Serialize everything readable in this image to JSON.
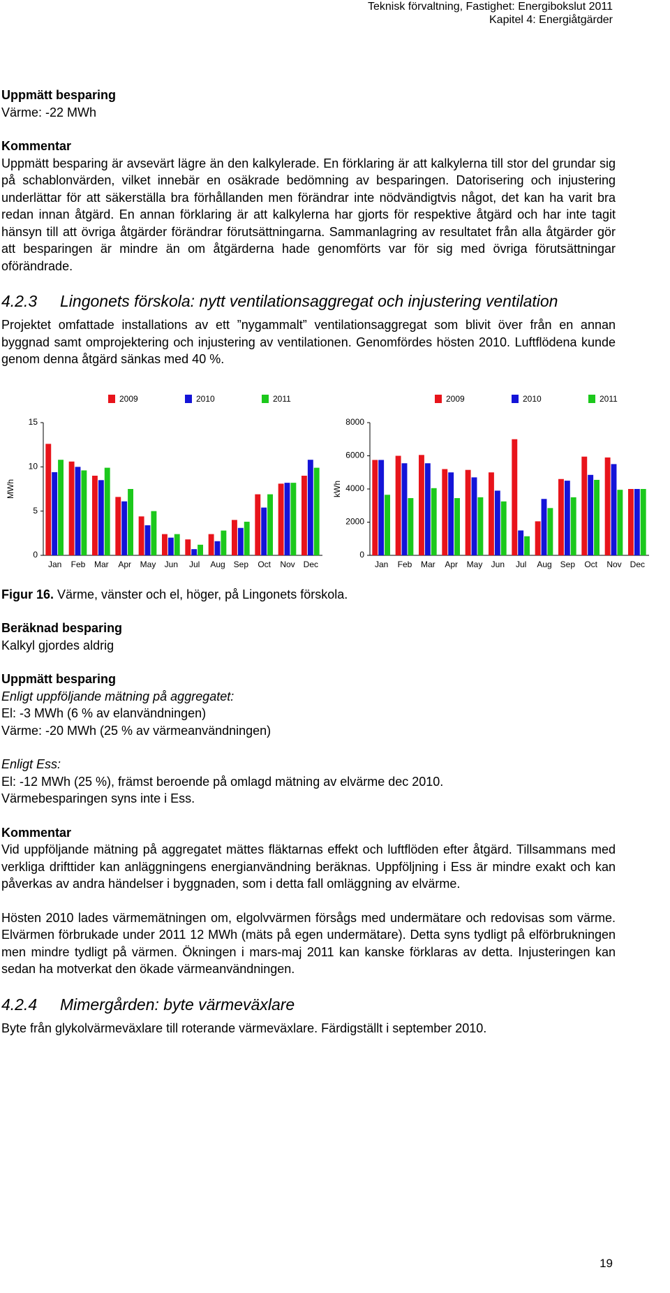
{
  "header": {
    "line1": "Teknisk förvaltning, Fastighet: Energibokslut 2011",
    "line2": "Kapitel 4: Energiåtgärder"
  },
  "s1": {
    "heading": "Uppmätt besparing",
    "text": "Värme: -22 MWh"
  },
  "s2": {
    "heading": "Kommentar",
    "text": "Uppmätt besparing är avsevärt lägre än den kalkylerade. En förklaring är att kalkylerna till stor del grundar sig på schablonvärden, vilket innebär en osäkrade bedömning av besparingen. Datorisering och injustering underlättar för att säkerställa bra förhållanden men förändrar inte nödvändigtvis något, det kan ha varit bra redan innan åtgärd. En annan förklaring är att kalkylerna har gjorts för respektive åtgärd och har inte tagit hänsyn till att övriga åtgärder förändrar förutsättningarna. Sammanlagring av resultatet från alla åtgärder gör att besparingen är mindre än om åtgärderna hade genomförts var för sig med övriga förutsättningar oförändrade."
  },
  "section_423": {
    "number": "4.2.3",
    "title": "Lingonets förskola: nytt ventilationsaggregat och injustering ventilation",
    "text": "Projektet omfattade installations av ett ”nygammalt” ventilationsaggregat som blivit över från en annan byggnad samt omprojektering och injustering av ventilationen. Genomfördes hösten 2010. Luftflödena kunde genom denna åtgärd sänkas med 40 %."
  },
  "chart_data": [
    {
      "type": "bar",
      "y_label": "MWh",
      "categories": [
        "Jan",
        "Feb",
        "Mar",
        "Apr",
        "May",
        "Jun",
        "Jul",
        "Aug",
        "Sep",
        "Oct",
        "Nov",
        "Dec"
      ],
      "ylim": [
        0,
        15
      ],
      "yticks": [
        0,
        5,
        10,
        15
      ],
      "grid": false,
      "series": [
        {
          "name": "2009",
          "color": "#e8141b",
          "values": [
            12.6,
            10.6,
            9.0,
            6.6,
            4.4,
            2.4,
            1.8,
            2.4,
            4.0,
            6.9,
            8.1,
            9.0
          ]
        },
        {
          "name": "2010",
          "color": "#1414d8",
          "values": [
            9.4,
            10.0,
            8.5,
            6.1,
            3.4,
            2.0,
            0.7,
            1.6,
            3.1,
            5.4,
            8.2,
            10.8
          ]
        },
        {
          "name": "2011",
          "color": "#1cc81c",
          "values": [
            10.8,
            9.6,
            9.9,
            7.5,
            5.0,
            2.4,
            1.2,
            2.8,
            3.8,
            6.9,
            8.2,
            9.9
          ]
        }
      ]
    },
    {
      "type": "bar",
      "y_label": "kWh",
      "categories": [
        "Jan",
        "Feb",
        "Mar",
        "Apr",
        "May",
        "Jun",
        "Jul",
        "Aug",
        "Sep",
        "Oct",
        "Nov",
        "Dec"
      ],
      "ylim": [
        0,
        8000
      ],
      "yticks": [
        0,
        2000,
        4000,
        6000,
        8000
      ],
      "grid": false,
      "series": [
        {
          "name": "2009",
          "color": "#e8141b",
          "values": [
            5750,
            6000,
            6050,
            5200,
            5150,
            5000,
            7000,
            2050,
            4600,
            5950,
            5900,
            4000
          ]
        },
        {
          "name": "2010",
          "color": "#1414d8",
          "values": [
            5750,
            5550,
            5550,
            5000,
            4700,
            3900,
            1500,
            3400,
            4500,
            4850,
            5500,
            4000
          ]
        },
        {
          "name": "2011",
          "color": "#1cc81c",
          "values": [
            3650,
            3450,
            4050,
            3450,
            3500,
            3250,
            1150,
            2850,
            3500,
            4550,
            3950,
            4000
          ]
        }
      ]
    }
  ],
  "figure_caption": {
    "label": "Figur 16.",
    "text": "Värme, vänster och el, höger, på Lingonets förskola."
  },
  "s3": {
    "heading": "Beräknad besparing",
    "text": "Kalkyl gjordes aldrig"
  },
  "s4": {
    "heading": "Uppmätt besparing",
    "italic1": "Enligt uppföljande mätning på aggregatet:",
    "lines1": [
      "El: -3 MWh (6 % av elanvändningen)",
      "Värme: -20 MWh (25 % av värmeanvändningen)"
    ],
    "italic2": "Enligt Ess:",
    "lines2": [
      "El: -12 MWh (25 %), främst beroende på omlagd mätning av elvärme dec 2010.",
      "Värmebesparingen syns inte i Ess."
    ]
  },
  "s5": {
    "heading": "Kommentar",
    "paragraphs": [
      "Vid uppföljande mätning på aggregatet mättes fläktarnas effekt och luftflöden efter åtgärd. Tillsammans med verkliga drifttider kan anläggningens energianvändning beräknas. Uppföljning i Ess är mindre exakt och kan påverkas av andra händelser i byggnaden, som i detta fall omläggning av elvärme.",
      "Hösten 2010 lades värmemätningen om, elgolvvärmen försågs med undermätare och redovisas som värme. Elvärmen förbrukade under 2011 12 MWh (mäts på egen undermätare). Detta syns tydligt på elförbrukningen men mindre tydligt på värmen. Ökningen i mars-maj 2011 kan kanske förklaras av detta. Injusteringen kan sedan ha motverkat den ökade värmeanvändningen."
    ]
  },
  "section_424": {
    "number": "4.2.4",
    "title": "Mimergården: byte värmeväxlare",
    "text": "Byte från glykolvärmeväxlare till roterande värmeväxlare. Färdigställt i september 2010."
  },
  "page_number": "19"
}
